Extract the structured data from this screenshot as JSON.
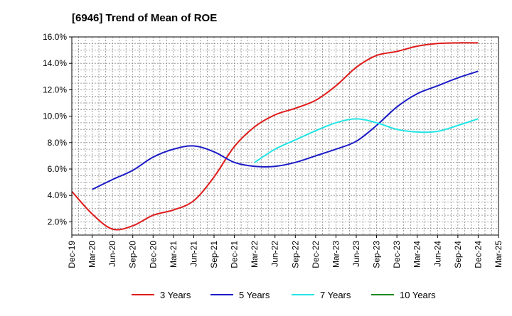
{
  "chart_data": {
    "type": "line",
    "title": "[6946]  Trend of Mean of ROE",
    "xlabel": "",
    "ylabel": "",
    "ylim": [
      1.0,
      16.0
    ],
    "grid": true,
    "legend_position": "bottom",
    "y_ticks": [
      "2.0%",
      "4.0%",
      "6.0%",
      "8.0%",
      "10.0%",
      "12.0%",
      "14.0%",
      "16.0%"
    ],
    "y_tick_values": [
      2,
      4,
      6,
      8,
      10,
      12,
      14,
      16
    ],
    "x_ticks": [
      "Dec-19",
      "Mar-20",
      "Jun-20",
      "Sep-20",
      "Dec-20",
      "Mar-21",
      "Jun-21",
      "Sep-21",
      "Dec-21",
      "Mar-22",
      "Jun-22",
      "Sep-22",
      "Dec-22",
      "Mar-23",
      "Jun-23",
      "Sep-23",
      "Dec-23",
      "Mar-24",
      "Jun-24",
      "Sep-24",
      "Dec-24",
      "Mar-25"
    ],
    "series": [
      {
        "name": "3 Years",
        "color": "#e01b1b",
        "points": [
          [
            "Dec-19",
            4.3
          ],
          [
            "Mar-20",
            2.6
          ],
          [
            "Jun-20",
            1.45
          ],
          [
            "Sep-20",
            1.7
          ],
          [
            "Dec-20",
            2.5
          ],
          [
            "Mar-21",
            2.9
          ],
          [
            "Jun-21",
            3.6
          ],
          [
            "Sep-21",
            5.4
          ],
          [
            "Dec-21",
            7.7
          ],
          [
            "Mar-22",
            9.2
          ],
          [
            "Jun-22",
            10.1
          ],
          [
            "Sep-22",
            10.6
          ],
          [
            "Dec-22",
            11.2
          ],
          [
            "Mar-23",
            12.3
          ],
          [
            "Jun-23",
            13.7
          ],
          [
            "Sep-23",
            14.6
          ],
          [
            "Dec-23",
            14.9
          ],
          [
            "Mar-24",
            15.3
          ],
          [
            "Jun-24",
            15.5
          ],
          [
            "Sep-24",
            15.55
          ],
          [
            "Dec-24",
            15.55
          ]
        ]
      },
      {
        "name": "5 Years",
        "color": "#1c1cc8",
        "points": [
          [
            "Mar-20",
            4.45
          ],
          [
            "Jun-20",
            5.2
          ],
          [
            "Sep-20",
            5.9
          ],
          [
            "Dec-20",
            6.9
          ],
          [
            "Mar-21",
            7.5
          ],
          [
            "Jun-21",
            7.75
          ],
          [
            "Sep-21",
            7.3
          ],
          [
            "Dec-21",
            6.5
          ],
          [
            "Mar-22",
            6.2
          ],
          [
            "Jun-22",
            6.2
          ],
          [
            "Sep-22",
            6.5
          ],
          [
            "Dec-22",
            7.0
          ],
          [
            "Mar-23",
            7.5
          ],
          [
            "Jun-23",
            8.1
          ],
          [
            "Sep-23",
            9.3
          ],
          [
            "Dec-23",
            10.7
          ],
          [
            "Mar-24",
            11.7
          ],
          [
            "Jun-24",
            12.3
          ],
          [
            "Sep-24",
            12.9
          ],
          [
            "Dec-24",
            13.4
          ]
        ]
      },
      {
        "name": "7 Years",
        "color": "#22e5e5",
        "points": [
          [
            "Mar-22",
            6.5
          ],
          [
            "Jun-22",
            7.5
          ],
          [
            "Sep-22",
            8.2
          ],
          [
            "Dec-22",
            8.9
          ],
          [
            "Mar-23",
            9.5
          ],
          [
            "Jun-23",
            9.8
          ],
          [
            "Sep-23",
            9.5
          ],
          [
            "Dec-23",
            9.0
          ],
          [
            "Mar-24",
            8.8
          ],
          [
            "Jun-24",
            8.85
          ],
          [
            "Sep-24",
            9.3
          ],
          [
            "Dec-24",
            9.8
          ]
        ]
      },
      {
        "name": "10 Years",
        "color": "#1f8a1f",
        "points": []
      }
    ]
  }
}
